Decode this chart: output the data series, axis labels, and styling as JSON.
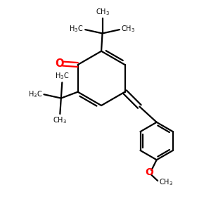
{
  "bg_color": "#ffffff",
  "bond_color": "#000000",
  "oxygen_color": "#ff0000",
  "line_width": 1.6,
  "font_size": 8.5,
  "figsize": [
    3.0,
    3.0
  ],
  "dpi": 100
}
